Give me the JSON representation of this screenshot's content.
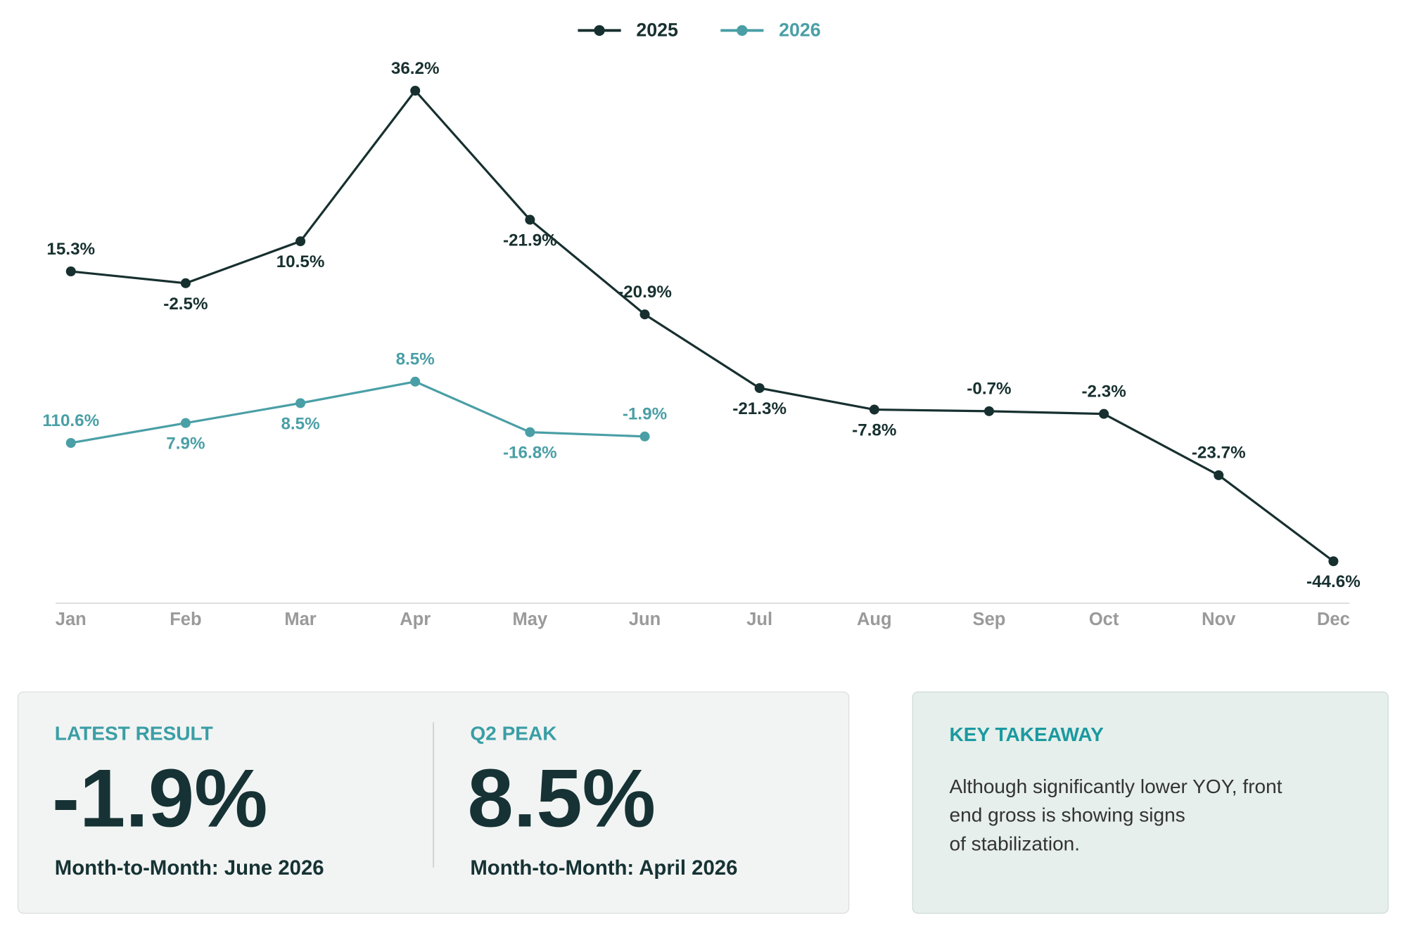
{
  "chart_data": {
    "type": "line",
    "categories": [
      "Jan",
      "Feb",
      "Mar",
      "Apr",
      "May",
      "Jun",
      "Jul",
      "Aug",
      "Sep",
      "Oct",
      "Nov",
      "Dec"
    ],
    "ylim": [
      0,
      100
    ],
    "series": [
      {
        "name": "2025",
        "color": "#17302f",
        "values": [
          61.7,
          59.5,
          67.3,
          95.3,
          71.3,
          53.7,
          40,
          36,
          35.7,
          35.2,
          23.8,
          7.8
        ],
        "labels": [
          "15.3%",
          "-2.5%",
          "10.5%",
          "36.2%",
          "-21.9%",
          "-20.9%",
          "-21.3%",
          "-7.8%",
          "-0.7%",
          "-2.3%",
          "-23.7%",
          "-44.6%"
        ]
      },
      {
        "name": "2026",
        "color": "#4a9fa6",
        "values": [
          29.8,
          33.5,
          37.2,
          41.2,
          31.8,
          31,
          null,
          null,
          null,
          null,
          null,
          null
        ],
        "labels": [
          "110.6%",
          "7.9%",
          "8.5%",
          "8.5%",
          "-16.8%",
          "-1.9%",
          null,
          null,
          null,
          null,
          null,
          null
        ]
      }
    ]
  },
  "cards": [
    {
      "label": "LATEST RESULT",
      "value": "-1.9%",
      "caption": "Month-to-Month: June 2026"
    },
    {
      "label": "Q2 PEAK",
      "value": "8.5%",
      "caption": "Month-to-Month: April 2026"
    }
  ],
  "takeaway": {
    "title": "KEY TAKEAWAY",
    "lines": [
      "Although significantly lower YOY, front",
      "end gross is showing signs",
      "of stabilization."
    ]
  }
}
